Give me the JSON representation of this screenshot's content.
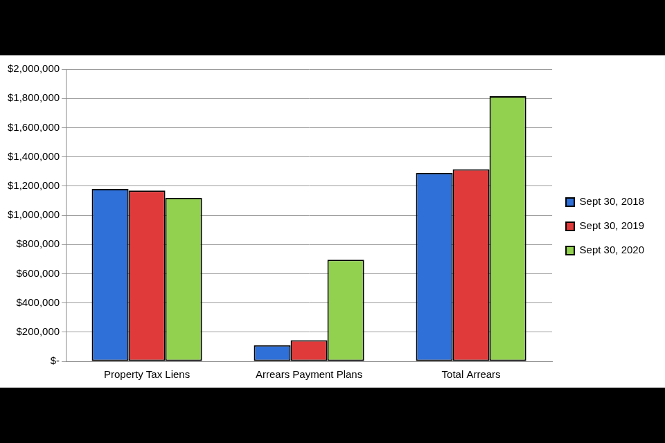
{
  "chart_data": {
    "type": "bar",
    "categories": [
      "Property Tax Liens",
      "Arrears Payment Plans",
      "Total Arrears"
    ],
    "series": [
      {
        "name": "Sept 30, 2018",
        "color": "#2f6fd8",
        "values": [
          1180000,
          110000,
          1290000
        ]
      },
      {
        "name": "Sept 30, 2019",
        "color": "#e03a3a",
        "values": [
          1170000,
          145000,
          1315000
        ]
      },
      {
        "name": "Sept 30, 2020",
        "color": "#92d050",
        "values": [
          1120000,
          695000,
          1815000
        ]
      }
    ],
    "ylim": [
      0,
      2000000
    ],
    "yticks": [
      {
        "value": 0,
        "label": "$-"
      },
      {
        "value": 200000,
        "label": "$200,000"
      },
      {
        "value": 400000,
        "label": "$400,000"
      },
      {
        "value": 600000,
        "label": "$600,000"
      },
      {
        "value": 800000,
        "label": "$800,000"
      },
      {
        "value": 1000000,
        "label": "$1,000,000"
      },
      {
        "value": 1200000,
        "label": "$1,200,000"
      },
      {
        "value": 1400000,
        "label": "$1,400,000"
      },
      {
        "value": 1600000,
        "label": "$1,600,000"
      },
      {
        "value": 1800000,
        "label": "$1,800,000"
      },
      {
        "value": 2000000,
        "label": "$2,000,000"
      }
    ],
    "grid": true,
    "legend": "right"
  }
}
